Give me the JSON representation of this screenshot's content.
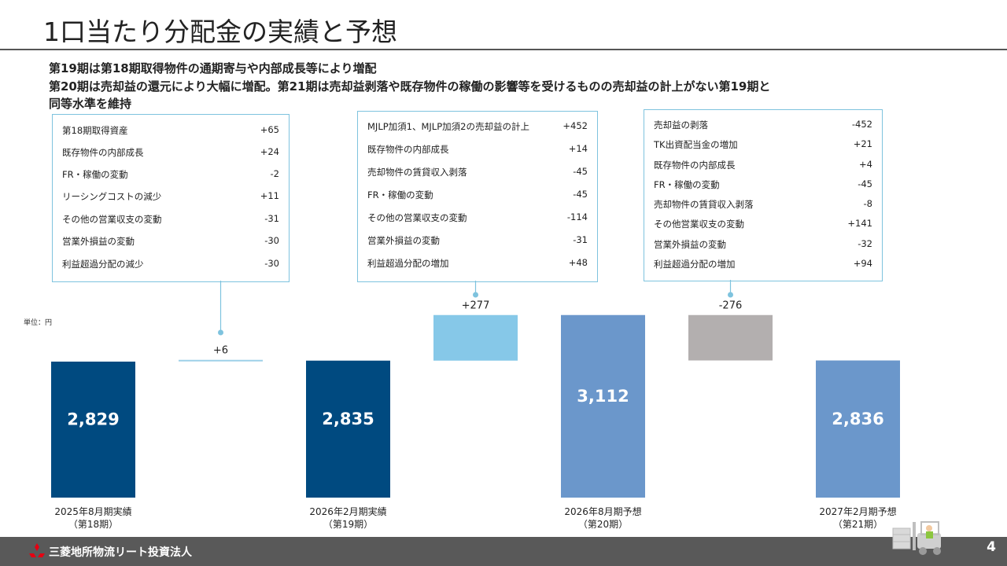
{
  "title": "1口当たり分配金の実績と予想",
  "subtitle_lines": [
    "第19期は第18期取得物件の通期寄与や内部成長等により増配",
    "第20期は売却益の還元により大幅に増配。第21期は売却益剥落や既存物件の稼働の影響等を受けるものの売却益の計上がない第19期と",
    "同等水準を維持"
  ],
  "unit_label": "単位：円",
  "boxes": [
    {
      "items": [
        {
          "label": "第18期取得資産",
          "value": "+65"
        },
        {
          "label": "既存物件の内部成長",
          "value": "+24"
        },
        {
          "label": "FR・稼働の変動",
          "value": "-2"
        },
        {
          "label": "リーシングコストの減少",
          "value": "+11"
        },
        {
          "label": "その他の営業収支の変動",
          "value": "-31"
        },
        {
          "label": "営業外損益の変動",
          "value": "-30"
        },
        {
          "label": "利益超過分配の減少",
          "value": "-30"
        }
      ]
    },
    {
      "items": [
        {
          "label": "MJLP加須1、MJLP加須2の売却益の計上",
          "value": "+452"
        },
        {
          "label": "既存物件の内部成長",
          "value": "+14"
        },
        {
          "label": "売却物件の賃貸収入剥落",
          "value": "-45"
        },
        {
          "label": "FR・稼働の変動",
          "value": "-45"
        },
        {
          "label": "その他の営業収支の変動",
          "value": "-114"
        },
        {
          "label": "営業外損益の変動",
          "value": "-31"
        },
        {
          "label": "利益超過分配の増加",
          "value": "+48"
        }
      ]
    },
    {
      "items": [
        {
          "label": "売却益の剥落",
          "value": "-452"
        },
        {
          "label": "TK出資配当金の増加",
          "value": "+21"
        },
        {
          "label": "既存物件の内部成長",
          "value": "+4"
        },
        {
          "label": "FR・稼働の変動",
          "value": "-45"
        },
        {
          "label": "売却物件の賃貸収入剥落",
          "value": "-8"
        },
        {
          "label": "その他営業収支の変動",
          "value": "+141"
        },
        {
          "label": "営業外損益の変動",
          "value": "-32"
        },
        {
          "label": "利益超過分配の増加",
          "value": "+94"
        }
      ]
    }
  ],
  "chart_data": {
    "type": "bar",
    "subtype": "waterfall",
    "unit": "円",
    "bars": [
      {
        "kind": "total",
        "value": 2829,
        "label": "2,829",
        "category": "2025年8月期実績",
        "category_sub": "（第18期）",
        "color": "#004a80"
      },
      {
        "kind": "delta",
        "value": 6,
        "label": "+6",
        "color": "#9dd0e8"
      },
      {
        "kind": "total",
        "value": 2835,
        "label": "2,835",
        "category": "2026年2月期実績",
        "category_sub": "（第19期）",
        "color": "#004a80"
      },
      {
        "kind": "delta",
        "value": 277,
        "label": "+277",
        "color": "#86c8e8"
      },
      {
        "kind": "total",
        "value": 3112,
        "label": "3,112",
        "category": "2026年8月期予想",
        "category_sub": "（第20期）",
        "color": "#6b97cb"
      },
      {
        "kind": "delta",
        "value": -276,
        "label": "-276",
        "color": "#b3afaf"
      },
      {
        "kind": "total",
        "value": 2836,
        "label": "2,836",
        "category": "2027年2月期予想",
        "category_sub": "（第21期）",
        "color": "#6b97cb"
      }
    ]
  },
  "footer": {
    "brand": "三菱地所物流リート投資法人",
    "page": "4"
  }
}
